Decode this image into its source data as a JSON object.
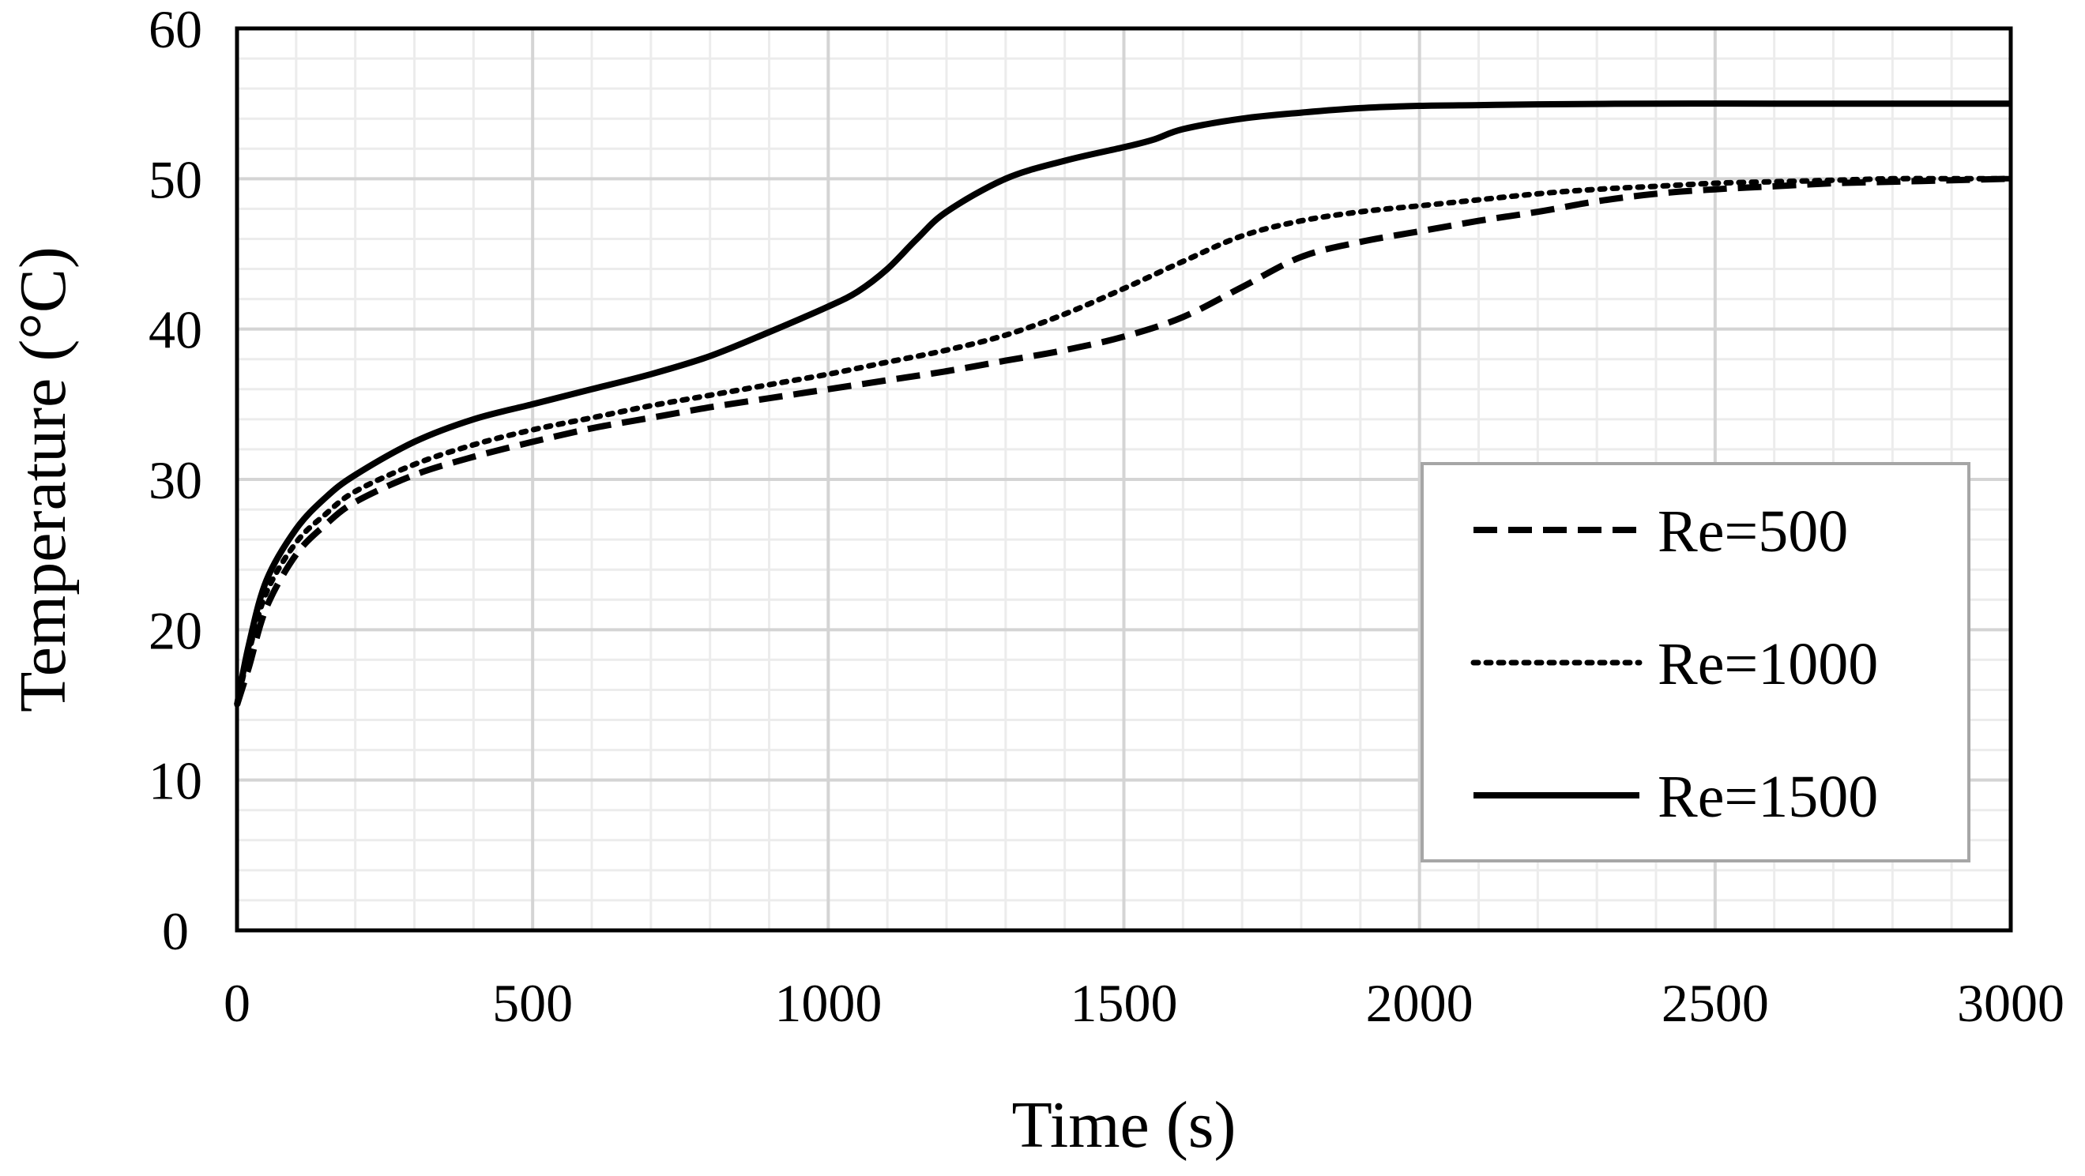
{
  "chart_data": {
    "type": "line",
    "title": "",
    "xlabel": "Time (s)",
    "ylabel": "Temperature (°C)",
    "xlim": [
      0,
      3000
    ],
    "ylim": [
      0,
      60
    ],
    "xticks": [
      0,
      500,
      1000,
      1500,
      2000,
      2500,
      3000
    ],
    "yticks": [
      0,
      10,
      20,
      30,
      40,
      50,
      60
    ],
    "grid": true,
    "minor_grid": true,
    "legend_position": "lower-right",
    "series": [
      {
        "name": "Re=500",
        "style": "dashed",
        "x": [
          0,
          20,
          50,
          100,
          150,
          200,
          300,
          400,
          500,
          600,
          700,
          800,
          900,
          1000,
          1100,
          1200,
          1300,
          1400,
          1500,
          1600,
          1700,
          1800,
          1900,
          2000,
          2100,
          2200,
          2300,
          2400,
          2500,
          2600,
          2700,
          2800,
          2900,
          3000
        ],
        "y": [
          15,
          17.5,
          21.5,
          25,
          27,
          28.5,
          30.3,
          31.5,
          32.5,
          33.4,
          34.1,
          34.8,
          35.4,
          36,
          36.6,
          37.2,
          37.9,
          38.6,
          39.5,
          40.8,
          42.8,
          44.8,
          45.8,
          46.5,
          47.2,
          47.8,
          48.5,
          49,
          49.3,
          49.5,
          49.7,
          49.8,
          49.9,
          50
        ]
      },
      {
        "name": "Re=1000",
        "style": "dotted",
        "x": [
          0,
          20,
          50,
          100,
          150,
          200,
          300,
          400,
          500,
          600,
          700,
          800,
          900,
          1000,
          1100,
          1200,
          1300,
          1400,
          1500,
          1600,
          1700,
          1800,
          1900,
          2000,
          2100,
          2200,
          2300,
          2400,
          2500,
          2600,
          2700,
          2800,
          2900,
          3000
        ],
        "y": [
          15,
          18.5,
          22.5,
          25.8,
          27.7,
          29.2,
          31,
          32.3,
          33.3,
          34.1,
          34.9,
          35.6,
          36.3,
          37,
          37.8,
          38.6,
          39.6,
          41,
          42.7,
          44.5,
          46.2,
          47.2,
          47.8,
          48.2,
          48.6,
          49,
          49.3,
          49.5,
          49.7,
          49.8,
          49.9,
          50,
          50,
          50
        ]
      },
      {
        "name": "Re=1500",
        "style": "solid",
        "x": [
          0,
          20,
          50,
          100,
          150,
          200,
          300,
          400,
          500,
          600,
          700,
          800,
          900,
          1000,
          1050,
          1100,
          1150,
          1200,
          1300,
          1400,
          1500,
          1550,
          1600,
          1700,
          1800,
          1900,
          2000,
          2100,
          2200,
          2400,
          2600,
          2800,
          3000
        ],
        "y": [
          15,
          19,
          23.3,
          26.7,
          28.8,
          30.3,
          32.5,
          34,
          35,
          36,
          37,
          38.2,
          39.8,
          41.5,
          42.5,
          44,
          46,
          47.8,
          50,
          51.2,
          52.1,
          52.6,
          53.3,
          54,
          54.4,
          54.7,
          54.85,
          54.9,
          54.95,
          55,
          55,
          55,
          55
        ]
      }
    ]
  }
}
